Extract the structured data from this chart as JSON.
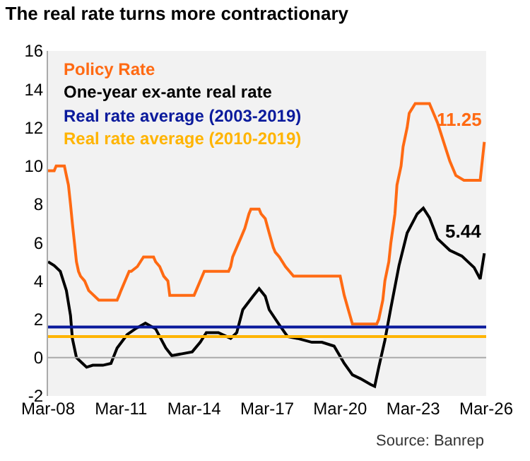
{
  "chart_data": {
    "type": "line",
    "title": "The real rate turns more contractionary",
    "xlim": [
      "2008-03-01",
      "2026-03-01"
    ],
    "xticks": [
      {
        "value": "2008-03-01",
        "label": "Mar-08"
      },
      {
        "value": "2011-03-01",
        "label": "Mar-11"
      },
      {
        "value": "2014-03-01",
        "label": "Mar-14"
      },
      {
        "value": "2017-03-01",
        "label": "Mar-17"
      },
      {
        "value": "2020-03-01",
        "label": "Mar-20"
      },
      {
        "value": "2023-03-01",
        "label": "Mar-23"
      },
      {
        "value": "2026-03-01",
        "label": "Mar-26"
      }
    ],
    "ylim": [
      -2,
      16
    ],
    "yticks": [
      -2,
      0,
      2,
      4,
      6,
      8,
      10,
      12,
      14,
      16
    ],
    "grid": false,
    "legend": "top left",
    "marker": "none",
    "line_style": "solid",
    "series": [
      {
        "name": "Policy Rate",
        "color": "#ff6a13",
        "x": [
          "2008-03",
          "2008-06",
          "2008-07",
          "2008-11",
          "2008-12",
          "2009-01",
          "2009-02",
          "2009-03",
          "2009-04",
          "2009-05",
          "2009-06",
          "2009-07",
          "2009-09",
          "2009-11",
          "2010-04",
          "2011-01",
          "2011-02",
          "2011-03",
          "2011-05",
          "2011-07",
          "2011-08",
          "2011-11",
          "2012-02",
          "2012-07",
          "2012-08",
          "2012-10",
          "2012-12",
          "2013-02",
          "2013-03",
          "2014-03",
          "2014-04",
          "2014-06",
          "2014-08",
          "2015-08",
          "2015-09",
          "2015-10",
          "2015-12",
          "2016-02",
          "2016-04",
          "2016-06",
          "2016-07",
          "2016-11",
          "2016-12",
          "2017-02",
          "2017-04",
          "2017-06",
          "2017-07",
          "2017-09",
          "2017-12",
          "2018-04",
          "2020-03",
          "2020-05",
          "2020-07",
          "2020-09",
          "2021-09",
          "2021-10",
          "2021-12",
          "2022-01",
          "2022-03",
          "2022-04",
          "2022-06",
          "2022-07",
          "2022-09",
          "2022-10",
          "2022-12",
          "2023-01",
          "2023-04",
          "2023-11",
          "2023-12",
          "2024-03",
          "2024-06",
          "2024-09",
          "2024-12",
          "2025-04",
          "2025-05",
          "2025-12",
          "2026-01",
          "2026-02"
        ],
        "values": [
          9.75,
          9.75,
          10,
          10,
          9.5,
          9,
          8,
          7,
          6,
          5,
          4.5,
          4.25,
          4,
          3.5,
          3,
          3,
          3.25,
          3.5,
          4,
          4.5,
          4.5,
          4.75,
          5.25,
          5.25,
          5,
          4.75,
          4.25,
          4,
          3.25,
          3.25,
          3.5,
          4,
          4.5,
          4.5,
          4.75,
          5.25,
          5.75,
          6.25,
          6.75,
          7.5,
          7.75,
          7.75,
          7.5,
          7.25,
          6.5,
          5.75,
          5.5,
          5.25,
          4.75,
          4.25,
          4.25,
          3.25,
          2.5,
          1.75,
          1.75,
          2,
          3,
          4,
          5,
          6,
          7.5,
          9,
          10,
          11,
          12,
          12.75,
          13.25,
          13.25,
          13,
          12.25,
          11.25,
          10.25,
          9.5,
          9.25,
          9.25,
          9.25,
          10.25,
          11.25
        ]
      },
      {
        "name": "One-year ex-ante real rate",
        "color": "#000000",
        "x": [
          "2008-03",
          "2008-06",
          "2008-09",
          "2008-12",
          "2009-02",
          "2009-03",
          "2009-05",
          "2009-08",
          "2009-10",
          "2010-01",
          "2010-06",
          "2010-10",
          "2011-01",
          "2011-06",
          "2011-10",
          "2012-03",
          "2012-08",
          "2012-11",
          "2013-01",
          "2013-04",
          "2013-09",
          "2014-02",
          "2014-06",
          "2014-09",
          "2015-03",
          "2015-09",
          "2015-12",
          "2016-03",
          "2016-08",
          "2016-11",
          "2017-02",
          "2017-04",
          "2017-09",
          "2018-01",
          "2018-06",
          "2019-01",
          "2019-06",
          "2019-12",
          "2020-05",
          "2020-09",
          "2021-01",
          "2021-06",
          "2021-08",
          "2021-10",
          "2022-01",
          "2022-04",
          "2022-08",
          "2022-12",
          "2023-05",
          "2023-08",
          "2023-11",
          "2024-03",
          "2024-09",
          "2025-03",
          "2025-09",
          "2025-12",
          "2026-02"
        ],
        "values": [
          5,
          4.8,
          4.5,
          3.5,
          2.2,
          1,
          0,
          -0.3,
          -0.5,
          -0.4,
          -0.4,
          -0.3,
          0.5,
          1.2,
          1.5,
          1.8,
          1.5,
          0.9,
          0.5,
          0.1,
          0.2,
          0.3,
          0.8,
          1.3,
          1.3,
          1.0,
          1.3,
          2.5,
          3.2,
          3.6,
          3.2,
          2.5,
          1.7,
          1.1,
          1.0,
          0.8,
          0.8,
          0.6,
          -0.3,
          -0.9,
          -1.1,
          -1.4,
          -1.5,
          -0.5,
          0.9,
          2.6,
          4.8,
          6.5,
          7.5,
          7.8,
          7.3,
          6.2,
          5.6,
          5.3,
          4.7,
          4.1,
          5.44
        ]
      }
    ],
    "ref_lines": [
      {
        "axis": "y",
        "value": 0,
        "color": "#aaaaaa"
      },
      {
        "axis": "y",
        "value": 1.6,
        "label": "Real rate average (2003-2019)",
        "color": "#0a1a9c"
      },
      {
        "axis": "y",
        "value": 1.1,
        "label": "Real rate average (2010-2019)",
        "color": "#ffb400"
      }
    ],
    "annotations": [
      {
        "text": "11.25",
        "x": "2026-02",
        "y": 11.25
      },
      {
        "text": "5.44",
        "x": "2026-02",
        "y": 5.44
      },
      "Source: Banrep"
    ]
  }
}
